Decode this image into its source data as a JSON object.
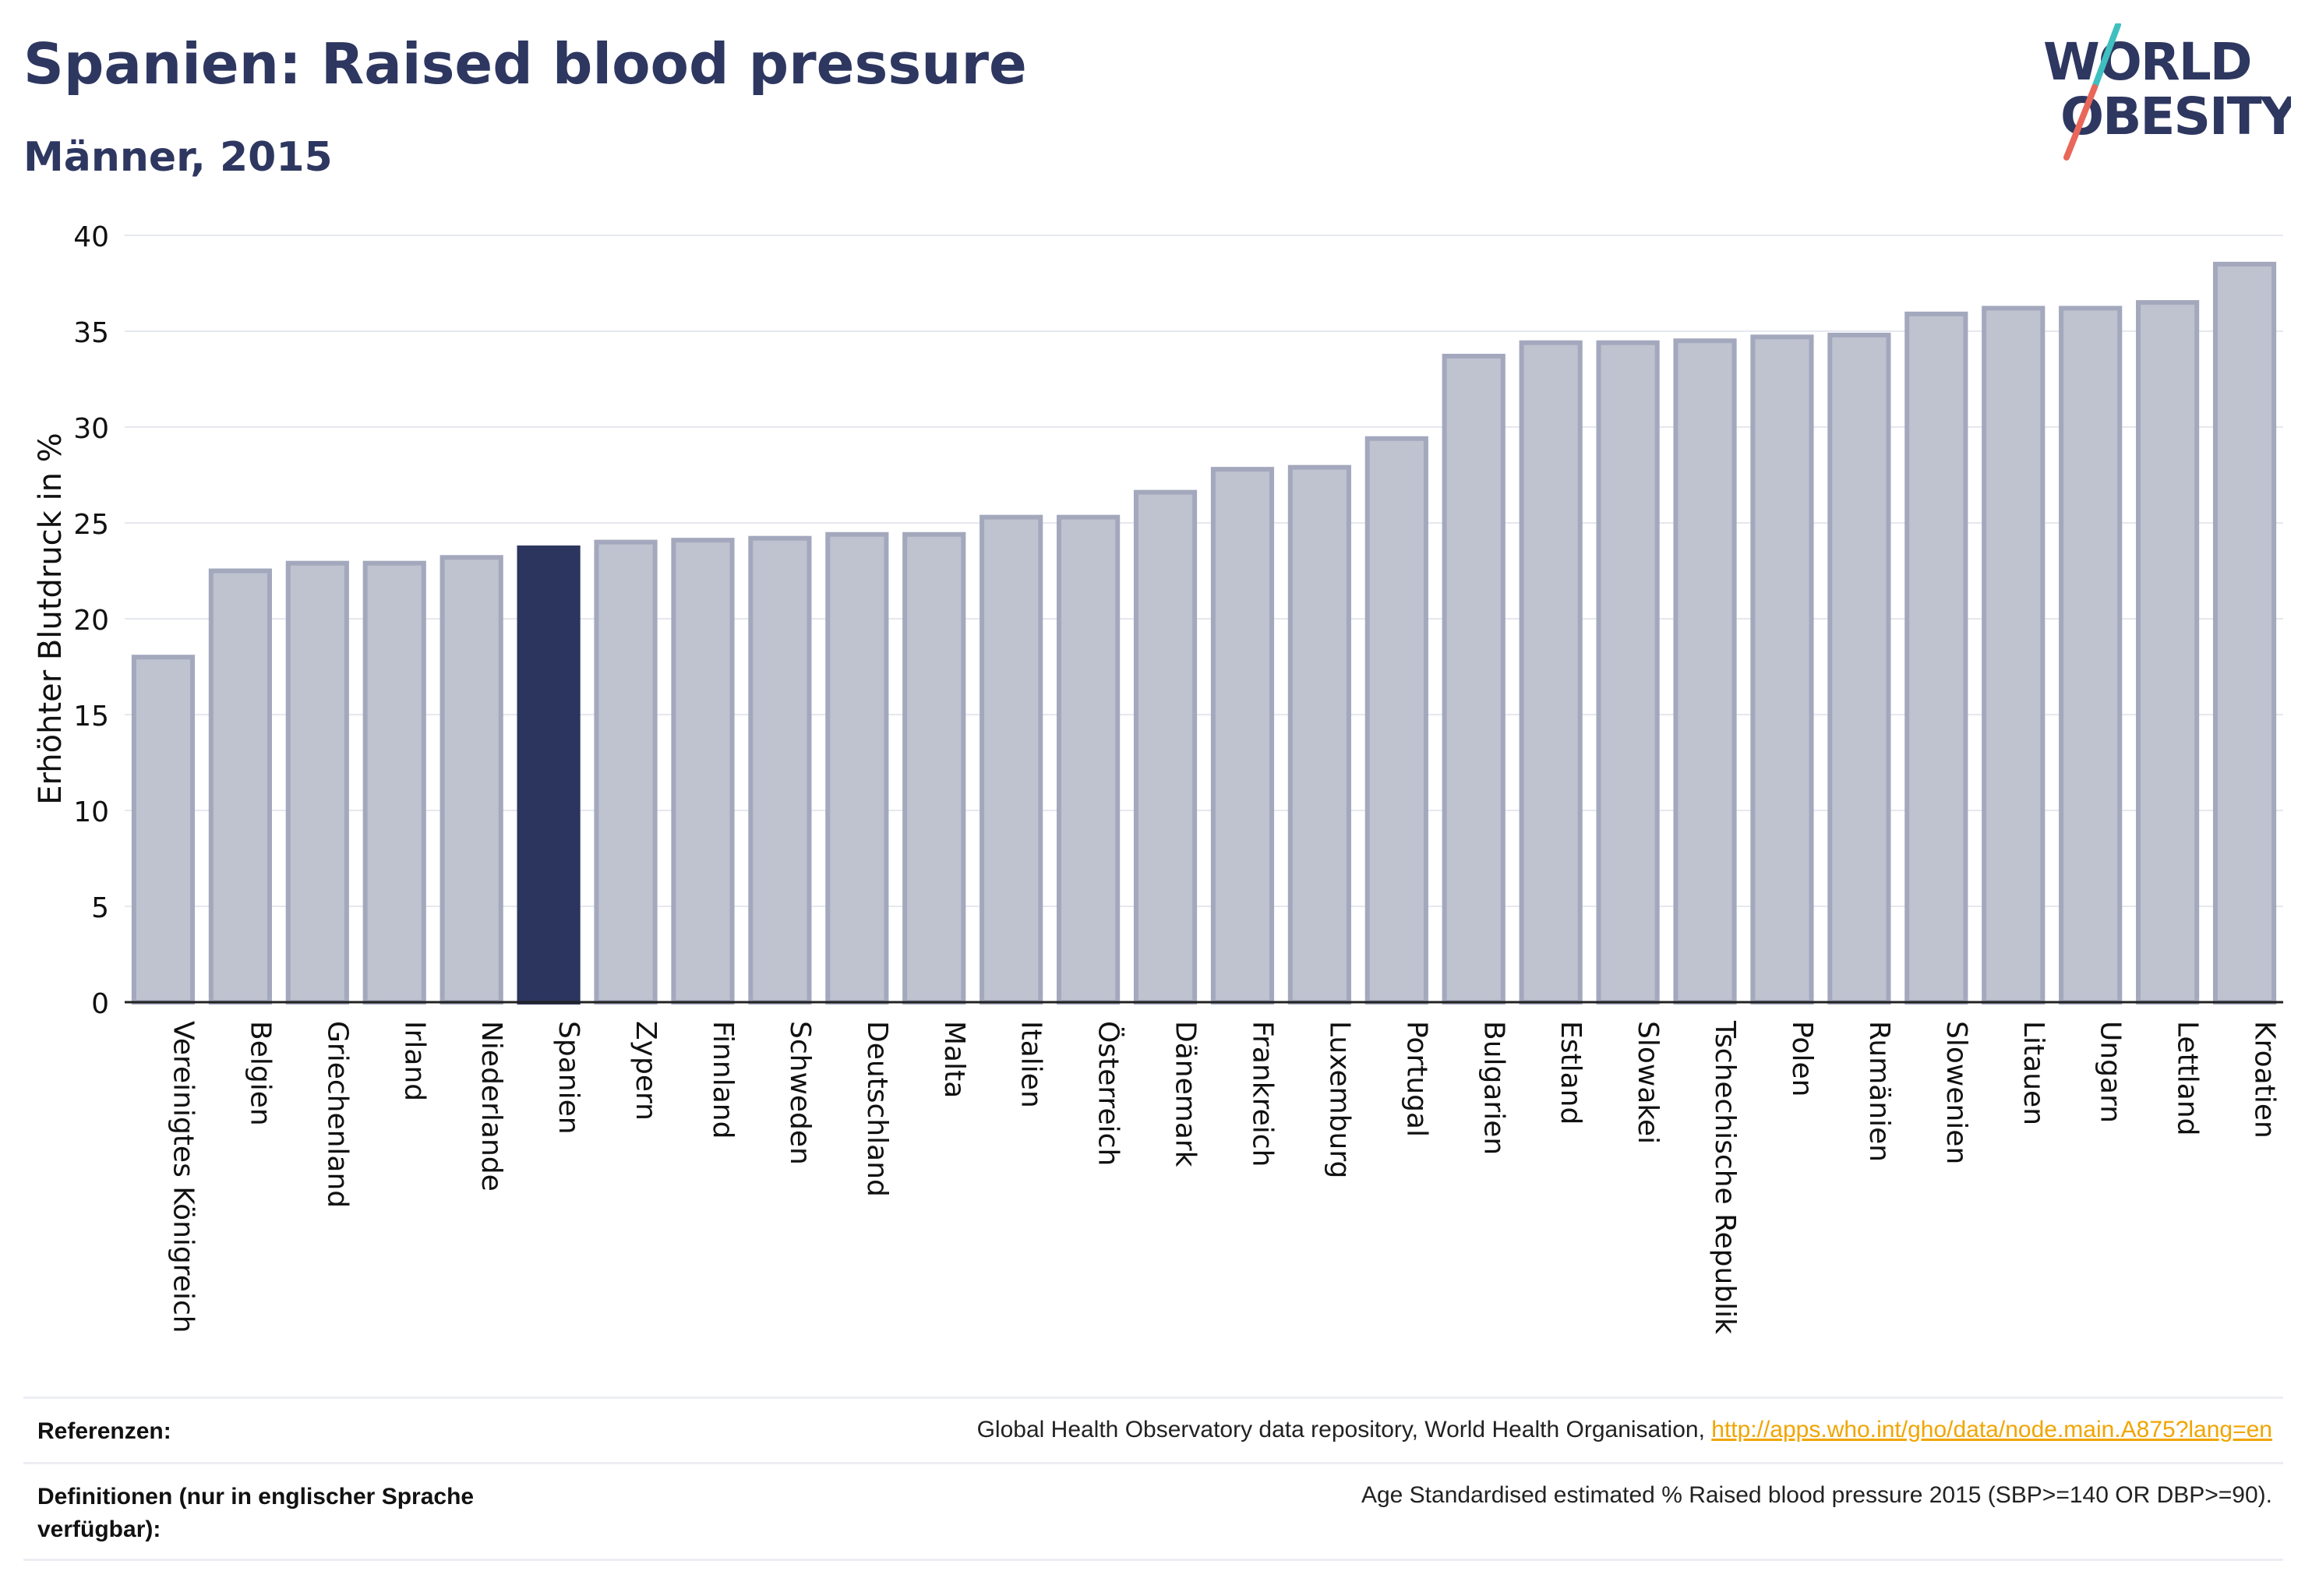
{
  "header": {
    "title": "Spanien: Raised blood pressure",
    "subtitle": "Männer, 2015"
  },
  "logo": {
    "line1": "WORLD",
    "line2": "OBESITY",
    "slash_color_top": "#3fbfbf",
    "slash_color_bottom": "#e8675a"
  },
  "colors": {
    "bar_default": "#bfc2cf",
    "bar_border": "#a3a8bd",
    "bar_highlight": "#2b355e",
    "axis_text": "#111111",
    "grid": "#e6e8ef"
  },
  "chart_data": {
    "type": "bar",
    "ylabel": "Erhöhter Blutdruck in %",
    "xlabel": "",
    "ylim": [
      0,
      40
    ],
    "yticks": [
      0,
      5,
      10,
      15,
      20,
      25,
      30,
      35,
      40
    ],
    "grid": true,
    "highlight": "Spanien",
    "categories": [
      "Vereinigtes Königreich",
      "Belgien",
      "Griechenland",
      "Irland",
      "Niederlande",
      "Spanien",
      "Zypern",
      "Finnland",
      "Schweden",
      "Deutschland",
      "Malta",
      "Italien",
      "Österreich",
      "Dänemark",
      "Frankreich",
      "Luxemburg",
      "Portugal",
      "Bulgarien",
      "Estland",
      "Slowakei",
      "Tschechische Republik",
      "Polen",
      "Rumänien",
      "Slowenien",
      "Litauen",
      "Ungarn",
      "Lettland",
      "Kroatien"
    ],
    "values": [
      18.0,
      22.5,
      22.9,
      22.9,
      23.2,
      23.7,
      24.0,
      24.1,
      24.2,
      24.4,
      24.4,
      25.3,
      25.3,
      26.6,
      27.8,
      27.9,
      29.4,
      33.7,
      34.4,
      34.4,
      34.5,
      34.7,
      34.8,
      35.9,
      36.2,
      36.2,
      36.5,
      38.5
    ]
  },
  "footer": {
    "references_label": "Referenzen:",
    "references_text": "Global Health Observatory data repository, World Health Organisation, ",
    "references_link": "http://apps.who.int/gho/data/node.main.A875?lang=en",
    "definitions_label": "Definitionen (nur in englischer Sprache verfügbar):",
    "definitions_text": "Age Standardised estimated % Raised blood pressure 2015 (SBP>=140 OR DBP>=90)."
  }
}
